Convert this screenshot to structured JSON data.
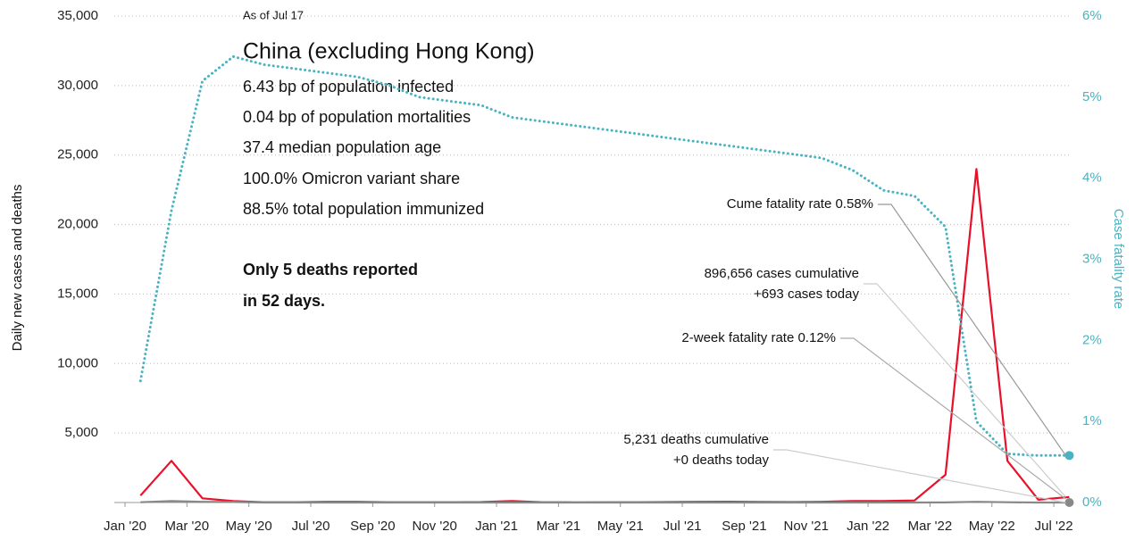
{
  "chart_data": {
    "type": "line",
    "title": "China (excluding Hong Kong)",
    "subtitle": "As of Jul 17",
    "stats": [
      "6.43 bp of population infected",
      "0.04 bp of population mortalities",
      "37.4 median population age",
      "100.0% Omicron variant share",
      "88.5% total population immunized"
    ],
    "headline": [
      "Only 5 deaths reported",
      "in 52 days."
    ],
    "callouts": {
      "cume_fatality": "Cume fatality rate 0.58%",
      "cases": [
        "896,656 cases cumulative",
        "+693 cases today"
      ],
      "two_week_fatality": "2-week fatality rate 0.12%",
      "deaths": [
        "5,231 deaths cumulative",
        "+0 deaths today"
      ]
    },
    "ylabel": "Daily new cases and deaths",
    "y2label": "Case fatality rate",
    "x": [
      "2020-01",
      "2020-02",
      "2020-03",
      "2020-04",
      "2020-05",
      "2020-06",
      "2020-07",
      "2020-08",
      "2020-09",
      "2020-10",
      "2020-11",
      "2020-12",
      "2021-01",
      "2021-02",
      "2021-03",
      "2021-04",
      "2021-05",
      "2021-06",
      "2021-07",
      "2021-08",
      "2021-09",
      "2021-10",
      "2021-11",
      "2021-12",
      "2022-01",
      "2022-02",
      "2022-03",
      "2022-04",
      "2022-05",
      "2022-06",
      "2022-07"
    ],
    "series": [
      {
        "name": "Daily new cases",
        "color": "#e8102a",
        "axis": "y",
        "values": [
          500,
          3000,
          300,
          100,
          20,
          20,
          50,
          50,
          20,
          20,
          20,
          30,
          100,
          20,
          10,
          20,
          20,
          30,
          50,
          60,
          40,
          30,
          50,
          100,
          100,
          150,
          2000,
          24000,
          3000,
          200,
          400
        ]
      },
      {
        "name": "Daily deaths",
        "color": "#888888",
        "axis": "y",
        "values": [
          20,
          100,
          50,
          40,
          0,
          0,
          0,
          0,
          0,
          0,
          0,
          0,
          0,
          0,
          0,
          0,
          0,
          0,
          0,
          0,
          0,
          0,
          0,
          0,
          0,
          0,
          5,
          50,
          20,
          0,
          0
        ]
      },
      {
        "name": "Case fatality rate",
        "color": "#49b3c2",
        "axis": "y2",
        "values": [
          1.5,
          3.6,
          5.2,
          5.5,
          5.4,
          5.35,
          5.3,
          5.25,
          5.15,
          5.0,
          4.95,
          4.9,
          4.75,
          4.7,
          4.65,
          4.6,
          4.55,
          4.5,
          4.45,
          4.4,
          4.35,
          4.3,
          4.25,
          4.1,
          3.85,
          3.78,
          3.4,
          1.0,
          0.6,
          0.58,
          0.58
        ]
      }
    ],
    "ylim": [
      0,
      35000
    ],
    "yticks": [
      {
        "value": 5000,
        "label": "5,000"
      },
      {
        "value": 10000,
        "label": "10,000"
      },
      {
        "value": 15000,
        "label": "15,000"
      },
      {
        "value": 20000,
        "label": "20,000"
      },
      {
        "value": 25000,
        "label": "25,000"
      },
      {
        "value": 30000,
        "label": "30,000"
      },
      {
        "value": 35000,
        "label": "35,000"
      }
    ],
    "y2lim": [
      0,
      6
    ],
    "y2ticks": [
      {
        "value": 0,
        "label": "0%"
      },
      {
        "value": 1,
        "label": "1%"
      },
      {
        "value": 2,
        "label": "2%"
      },
      {
        "value": 3,
        "label": "3%"
      },
      {
        "value": 4,
        "label": "4%"
      },
      {
        "value": 5,
        "label": "5%"
      },
      {
        "value": 6,
        "label": "6%"
      }
    ],
    "xticks": [
      {
        "value": "2020-01",
        "label": "Jan '20"
      },
      {
        "value": "2020-03",
        "label": "Mar '20"
      },
      {
        "value": "2020-05",
        "label": "May '20"
      },
      {
        "value": "2020-07",
        "label": "Jul '20"
      },
      {
        "value": "2020-09",
        "label": "Sep '20"
      },
      {
        "value": "2020-11",
        "label": "Nov '20"
      },
      {
        "value": "2021-01",
        "label": "Jan '21"
      },
      {
        "value": "2021-03",
        "label": "Mar '21"
      },
      {
        "value": "2021-05",
        "label": "May '21"
      },
      {
        "value": "2021-07",
        "label": "Jul '21"
      },
      {
        "value": "2021-09",
        "label": "Sep '21"
      },
      {
        "value": "2021-11",
        "label": "Nov '21"
      },
      {
        "value": "2022-01",
        "label": "Jan '22"
      },
      {
        "value": "2022-03",
        "label": "Mar '22"
      },
      {
        "value": "2022-05",
        "label": "May '22"
      },
      {
        "value": "2022-07",
        "label": "Jul '22"
      }
    ],
    "grid": true
  }
}
